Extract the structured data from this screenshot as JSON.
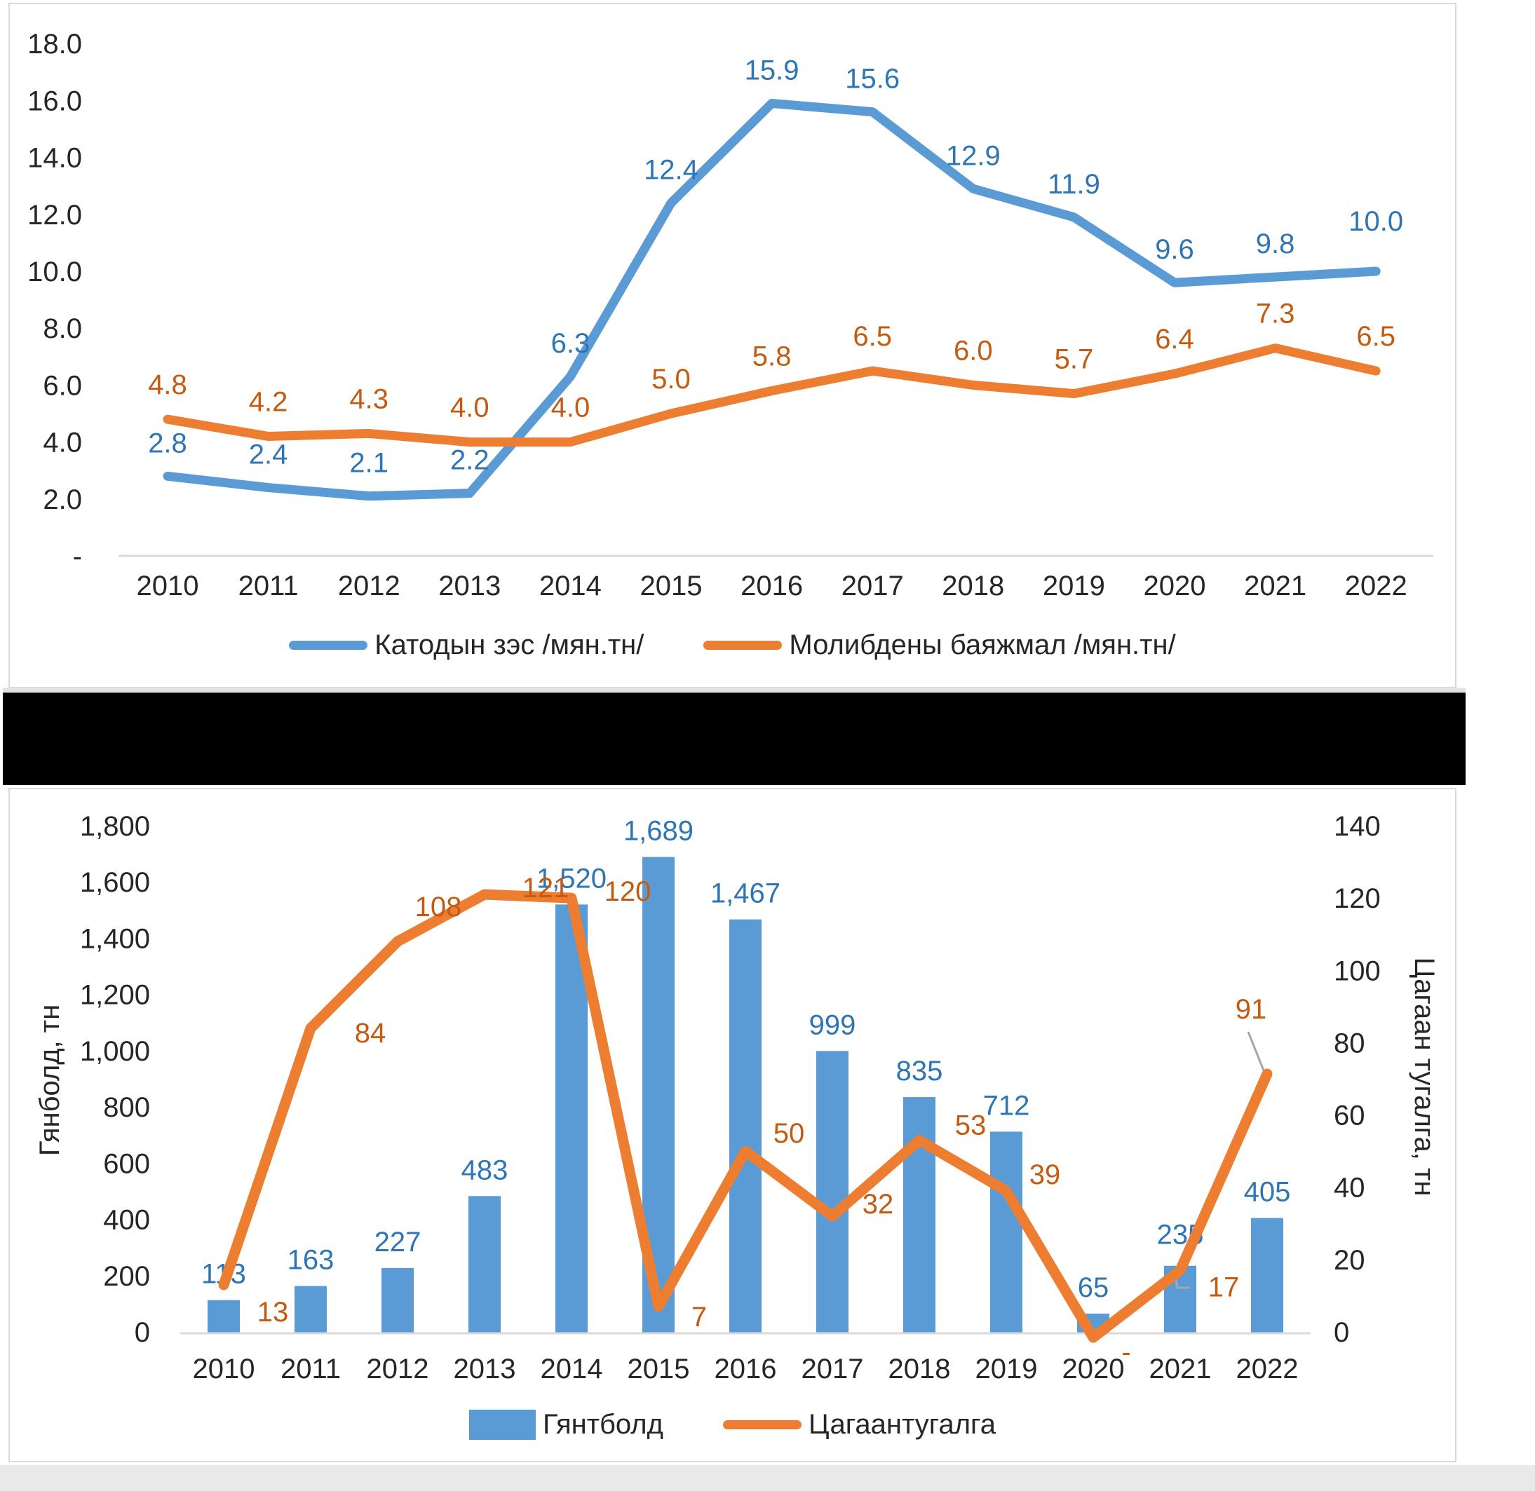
{
  "page": {
    "background": "#ffffff",
    "divider_bar_color": "#000000",
    "axis_line_color": "#d9d9d9",
    "leader_line_color": "#a6a6a6"
  },
  "chart_data": [
    {
      "type": "line",
      "title": "",
      "categories": [
        "2010",
        "2011",
        "2012",
        "2013",
        "2014",
        "2015",
        "2016",
        "2017",
        "2018",
        "2019",
        "2020",
        "2021",
        "2022"
      ],
      "series": [
        {
          "name": "Катодын зэс /мян.тн/",
          "color": "#5B9BD5",
          "label_color": "#2E75B6",
          "values": [
            2.8,
            2.4,
            2.1,
            2.2,
            6.3,
            12.4,
            15.9,
            15.6,
            12.9,
            11.9,
            9.6,
            9.8,
            10.0
          ],
          "labels": [
            "2.8",
            "2.4",
            "2.1",
            "2.2",
            "6.3",
            "12.4",
            "15.9",
            "15.6",
            "12.9",
            "11.9",
            "9.6",
            "9.8",
            "10.0"
          ]
        },
        {
          "name": "Молибдены баяжмал /мян.тн/",
          "color": "#ED7D31",
          "label_color": "#C55A11",
          "values": [
            4.8,
            4.2,
            4.3,
            4.0,
            4.0,
            5.0,
            5.8,
            6.5,
            6.0,
            5.7,
            6.4,
            7.3,
            6.5
          ],
          "labels": [
            "4.8",
            "4.2",
            "4.3",
            "4.0",
            "4.0",
            "5.0",
            "5.8",
            "6.5",
            "6.0",
            "5.7",
            "6.4",
            "7.3",
            "6.5"
          ]
        }
      ],
      "y_axis": {
        "ticks": [
          "18.0",
          "16.0",
          "14.0",
          "12.0",
          "10.0",
          "8.0",
          "6.0",
          "4.0",
          "2.0",
          "-"
        ],
        "min": 0,
        "max": 18,
        "step": 2
      },
      "grid": false,
      "legend_position": "bottom"
    },
    {
      "type": "bar+line",
      "title": "",
      "categories": [
        "2010",
        "2011",
        "2012",
        "2013",
        "2014",
        "2015",
        "2016",
        "2017",
        "2018",
        "2019",
        "2020",
        "2021",
        "2022"
      ],
      "bar_series": {
        "name": "Гянтболд",
        "axis": "left",
        "color": "#5B9BD5",
        "label_color": "#2E75B6",
        "values": [
          113,
          163,
          227,
          483,
          1520,
          1689,
          1467,
          999,
          835,
          712,
          65,
          235,
          405
        ],
        "labels": [
          "113",
          "163",
          "227",
          "483",
          "1,520",
          "1,689",
          "1,467",
          "999",
          "835",
          "712",
          "65",
          "235",
          "405"
        ]
      },
      "line_series": {
        "name": "Цагаантугалга",
        "axis": "right",
        "color": "#ED7D31",
        "label_color": "#C55A11",
        "values": [
          13,
          84,
          108,
          121,
          120,
          7,
          50,
          32,
          53,
          39,
          0,
          17,
          91
        ],
        "labels": [
          "13",
          "84",
          "108",
          "121",
          "120",
          "7",
          "50",
          "32",
          "53",
          "39",
          "-",
          "17",
          "91"
        ]
      },
      "left_axis": {
        "title": "Гянболд, тн",
        "ticks": [
          "1,800",
          "1,600",
          "1,400",
          "1,200",
          "1,000",
          "800",
          "600",
          "400",
          "200",
          "0"
        ],
        "min": 0,
        "max": 1800,
        "step": 200
      },
      "right_axis": {
        "title": "Цагаан тугалга, тн",
        "ticks": [
          "140",
          "120",
          "100",
          "80",
          "60",
          "40",
          "20",
          "0"
        ],
        "min": 0,
        "max": 140,
        "step": 20
      },
      "grid": false,
      "legend_position": "bottom"
    }
  ]
}
